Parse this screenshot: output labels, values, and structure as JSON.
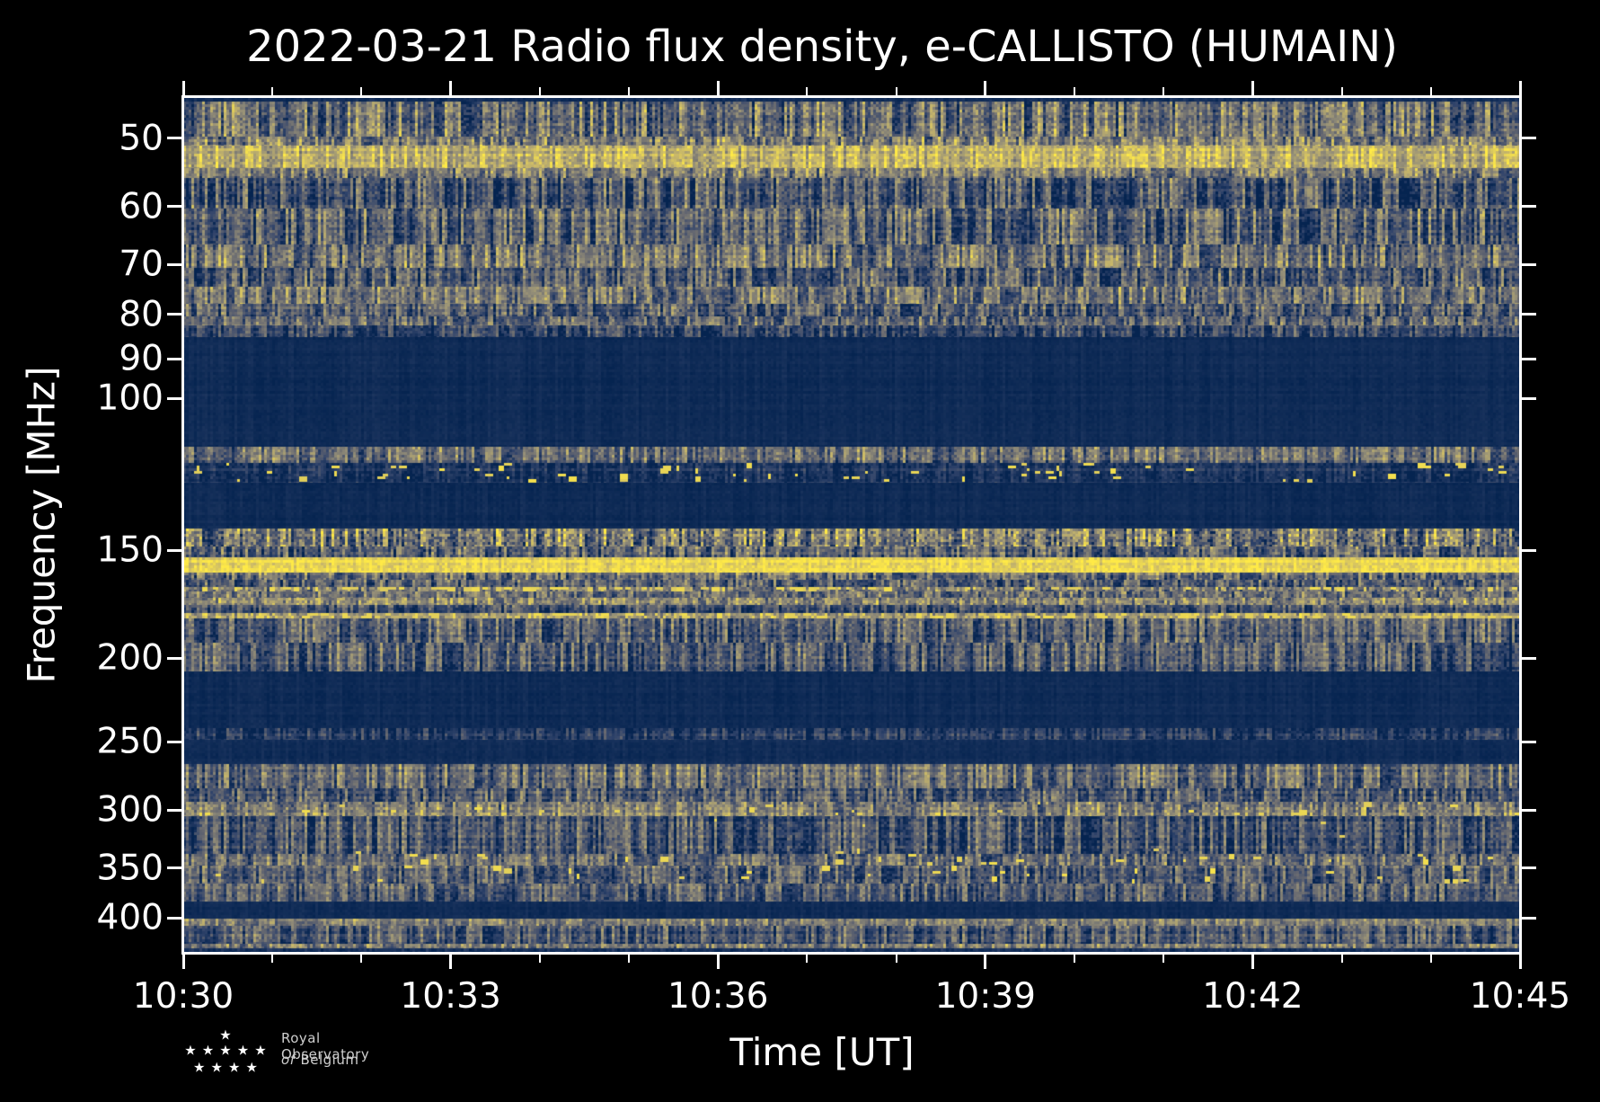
{
  "chart_data": {
    "type": "heatmap",
    "subtype": "radio-spectrogram",
    "title": "2022-03-21 Radio flux density, e-CALLISTO (HUMAIN)",
    "xlabel": "Time [UT]",
    "ylabel": "Frequency [MHz]",
    "x_ticks": [
      "10:30",
      "10:33",
      "10:36",
      "10:39",
      "10:42",
      "10:45"
    ],
    "time_start": "10:30",
    "time_end": "10:45",
    "x_major_ticks_every_minutes": 3,
    "x_minor_ticks_every_minutes": 1,
    "y_scale": "log",
    "y_ticks_mhz": [
      50,
      60,
      70,
      80,
      90,
      100,
      150,
      200,
      250,
      300,
      350,
      400
    ],
    "freq_min_mhz": 44.8,
    "freq_max_mhz": 438.7,
    "colormap": "cividis",
    "colormap_stops": [
      [
        0,
        "#00204D"
      ],
      [
        0.2,
        "#31446B"
      ],
      [
        0.4,
        "#666870"
      ],
      [
        0.6,
        "#958F78"
      ],
      [
        0.8,
        "#CAB969"
      ],
      [
        1,
        "#FFEA46"
      ]
    ],
    "legend": "none",
    "grid": false,
    "bands": [
      {
        "f_lo": 44.8,
        "f_hi": 45.3,
        "base": 0.07,
        "streak": 0.02,
        "var": 0.03
      },
      {
        "f_lo": 45.3,
        "f_hi": 49.8,
        "base": 0.42,
        "streak": 0.17,
        "var": 0.16
      },
      {
        "f_lo": 49.8,
        "f_hi": 51.0,
        "base": 0.53,
        "streak": 0.15,
        "var": 0.15
      },
      {
        "f_lo": 51.0,
        "f_hi": 54.1,
        "base": 0.74,
        "streak": 0.1,
        "var": 0.13
      },
      {
        "f_lo": 54.1,
        "f_hi": 55.6,
        "base": 0.48,
        "streak": 0.14,
        "var": 0.14
      },
      {
        "f_lo": 55.6,
        "f_hi": 60.3,
        "base": 0.31,
        "streak": 0.17,
        "var": 0.14
      },
      {
        "f_lo": 60.3,
        "f_hi": 66.4,
        "base": 0.36,
        "streak": 0.17,
        "var": 0.14
      },
      {
        "f_lo": 66.4,
        "f_hi": 70.6,
        "base": 0.44,
        "streak": 0.16,
        "var": 0.14
      },
      {
        "f_lo": 70.6,
        "f_hi": 74.2,
        "base": 0.33,
        "streak": 0.16,
        "var": 0.13
      },
      {
        "f_lo": 74.2,
        "f_hi": 77.8,
        "base": 0.44,
        "streak": 0.15,
        "var": 0.13
      },
      {
        "f_lo": 77.8,
        "f_hi": 80.4,
        "base": 0.33,
        "streak": 0.15,
        "var": 0.13
      },
      {
        "f_lo": 80.4,
        "f_hi": 82.3,
        "base": 0.42,
        "streak": 0.14,
        "var": 0.12
      },
      {
        "f_lo": 82.3,
        "f_hi": 84.9,
        "base": 0.25,
        "streak": 0.12,
        "var": 0.12
      },
      {
        "f_lo": 84.9,
        "f_hi": 113.8,
        "base": 0.06,
        "streak": 0.012,
        "var": 0.02
      },
      {
        "f_lo": 113.8,
        "f_hi": 118.8,
        "base": 0.4,
        "streak": 0.14,
        "var": 0.14
      },
      {
        "f_lo": 118.8,
        "f_hi": 125.3,
        "base": 0.14,
        "streak": 0.05,
        "var": 0.08,
        "blob_count": 70,
        "blob_level": 0.96
      },
      {
        "f_lo": 125.3,
        "f_hi": 141.6,
        "base": 0.06,
        "streak": 0.012,
        "var": 0.02
      },
      {
        "f_lo": 141.6,
        "f_hi": 148.6,
        "base": 0.5,
        "streak": 0.18,
        "var": 0.22
      },
      {
        "f_lo": 148.6,
        "f_hi": 152.9,
        "base": 0.34,
        "streak": 0.15,
        "var": 0.15
      },
      {
        "f_lo": 152.9,
        "f_hi": 159.2,
        "base": 0.93,
        "streak": 0.04,
        "var": 0.09
      },
      {
        "f_lo": 159.2,
        "f_hi": 162.3,
        "base": 0.43,
        "streak": 0.15,
        "var": 0.13
      },
      {
        "f_lo": 162.3,
        "f_hi": 165.4,
        "base": 0.31,
        "streak": 0.14,
        "var": 0.12
      },
      {
        "f_lo": 165.4,
        "f_hi": 167.3,
        "base": 0.48,
        "streak": 0.12,
        "var": 0.15,
        "blob_count": 90,
        "blob_level": 0.95
      },
      {
        "f_lo": 167.3,
        "f_hi": 170.3,
        "base": 0.43,
        "streak": 0.13,
        "var": 0.13
      },
      {
        "f_lo": 170.3,
        "f_hi": 173.5,
        "base": 0.56,
        "streak": 0.12,
        "var": 0.16
      },
      {
        "f_lo": 173.5,
        "f_hi": 177.3,
        "base": 0.29,
        "streak": 0.12,
        "var": 0.12
      },
      {
        "f_lo": 177.3,
        "f_hi": 179.8,
        "base": 0.7,
        "streak": 0.08,
        "var": 0.16,
        "blob_count": 110,
        "blob_level": 0.95
      },
      {
        "f_lo": 179.8,
        "f_hi": 192.0,
        "base": 0.33,
        "streak": 0.15,
        "var": 0.13
      },
      {
        "f_lo": 192.0,
        "f_hi": 207.3,
        "base": 0.31,
        "streak": 0.15,
        "var": 0.13
      },
      {
        "f_lo": 207.3,
        "f_hi": 241.1,
        "base": 0.06,
        "streak": 0.012,
        "var": 0.02
      },
      {
        "f_lo": 241.1,
        "f_hi": 248.7,
        "base": 0.19,
        "streak": 0.09,
        "var": 0.1
      },
      {
        "f_lo": 248.7,
        "f_hi": 265.4,
        "base": 0.065,
        "streak": 0.012,
        "var": 0.02
      },
      {
        "f_lo": 265.4,
        "f_hi": 283.2,
        "base": 0.42,
        "streak": 0.15,
        "var": 0.13
      },
      {
        "f_lo": 283.2,
        "f_hi": 293.5,
        "base": 0.31,
        "streak": 0.14,
        "var": 0.13
      },
      {
        "f_lo": 293.5,
        "f_hi": 304.4,
        "base": 0.52,
        "streak": 0.12,
        "var": 0.16,
        "blob_count": 28,
        "blob_level": 0.95
      },
      {
        "f_lo": 304.4,
        "f_hi": 337.3,
        "base": 0.3,
        "streak": 0.15,
        "var": 0.13,
        "blob_count": 8,
        "blob_level": 0.92
      },
      {
        "f_lo": 337.3,
        "f_hi": 348.0,
        "base": 0.4,
        "streak": 0.14,
        "var": 0.13,
        "blob_count": 26,
        "blob_level": 0.96
      },
      {
        "f_lo": 348.0,
        "f_hi": 365.2,
        "base": 0.34,
        "streak": 0.14,
        "var": 0.13,
        "blob_count": 30,
        "blob_level": 0.97
      },
      {
        "f_lo": 365.2,
        "f_hi": 383.1,
        "base": 0.36,
        "streak": 0.14,
        "var": 0.12
      },
      {
        "f_lo": 383.1,
        "f_hi": 400.9,
        "base": 0.06,
        "streak": 0.012,
        "var": 0.02
      },
      {
        "f_lo": 400.9,
        "f_hi": 408.7,
        "base": 0.55,
        "streak": 0.1,
        "var": 0.12
      },
      {
        "f_lo": 408.7,
        "f_hi": 428.8,
        "base": 0.31,
        "streak": 0.14,
        "var": 0.12
      },
      {
        "f_lo": 428.8,
        "f_hi": 433.3,
        "base": 0.5,
        "streak": 0.12,
        "var": 0.12
      },
      {
        "f_lo": 433.3,
        "f_hi": 438.7,
        "base": 0.1,
        "streak": 0.03,
        "var": 0.05
      }
    ]
  },
  "logo": {
    "line1": "Royal Observatory",
    "line2_word1": "of",
    "line2_word2": "Belgium",
    "star_rows": [
      1,
      5,
      4
    ]
  },
  "colors": {
    "background": "#000000",
    "axis": "#ffffff",
    "text": "#ffffff",
    "logo_text": "#cfcfcf"
  }
}
